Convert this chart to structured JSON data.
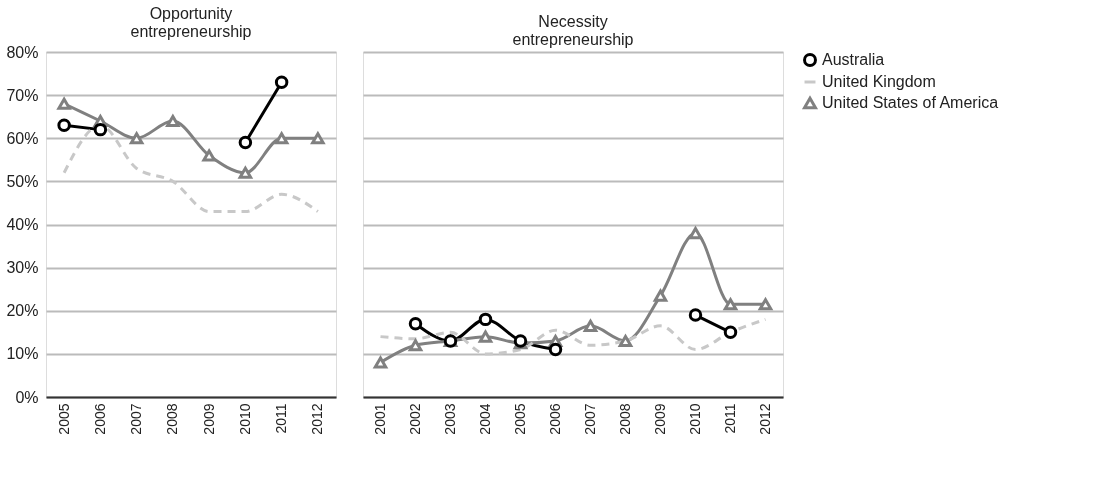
{
  "chart_data": [
    {
      "type": "line",
      "title": "Opportunity\nentrepreneurship",
      "categories": [
        "2005",
        "2006",
        "2007",
        "2008",
        "2009",
        "2010",
        "2011",
        "2012"
      ],
      "series": [
        {
          "name": "Australia",
          "color": "#000000",
          "marker": "circle",
          "line_style": "solid",
          "values": [
            63,
            62,
            null,
            null,
            null,
            59,
            73,
            null
          ]
        },
        {
          "name": "United Kingdom",
          "color": "#c8c8c8",
          "marker": "none",
          "line_style": "dashed",
          "values": [
            52,
            63,
            53,
            50,
            43,
            43,
            47,
            43
          ]
        },
        {
          "name": "United States of America",
          "color": "#808080",
          "marker": "triangle",
          "line_style": "solid",
          "values": [
            68,
            64,
            60,
            64,
            56,
            52,
            60,
            60
          ]
        }
      ],
      "ylim": [
        0,
        80
      ],
      "yticks": [
        {
          "value": 0,
          "label": "0%"
        },
        {
          "value": 10,
          "label": "10%"
        },
        {
          "value": 20,
          "label": "20%"
        },
        {
          "value": 30,
          "label": "30%"
        },
        {
          "value": 40,
          "label": "40%"
        },
        {
          "value": 50,
          "label": "50%"
        },
        {
          "value": 60,
          "label": "60%"
        },
        {
          "value": 70,
          "label": "70%"
        },
        {
          "value": 80,
          "label": "80%"
        }
      ],
      "grid": "y",
      "legend": "right"
    },
    {
      "type": "line",
      "title": "Necessity\nentrepreneurship",
      "categories": [
        "2001",
        "2002",
        "2003",
        "2004",
        "2005",
        "2006",
        "2007",
        "2008",
        "2009",
        "2010",
        "2011",
        "2012"
      ],
      "series": [
        {
          "name": "Australia",
          "color": "#000000",
          "marker": "circle",
          "line_style": "solid",
          "values": [
            null,
            17,
            13,
            18,
            13,
            11,
            null,
            null,
            null,
            19,
            15,
            null
          ]
        },
        {
          "name": "United Kingdom",
          "color": "#c8c8c8",
          "marker": "none",
          "line_style": "dashed",
          "values": [
            14,
            13.5,
            15,
            10,
            11,
            15.5,
            12,
            13,
            16.5,
            11,
            15,
            18
          ]
        },
        {
          "name": "United States of America",
          "color": "#808080",
          "marker": "triangle",
          "line_style": "solid",
          "values": [
            8,
            12,
            13,
            14,
            12.5,
            13,
            16.5,
            13,
            23.5,
            38,
            21.5,
            21.5
          ]
        }
      ],
      "ylim": [
        0,
        80
      ],
      "yticks": [
        0,
        10,
        20,
        30,
        40,
        50,
        60,
        70,
        80
      ],
      "grid": "y",
      "legend": "right",
      "tick_labels": "x"
    }
  ]
}
